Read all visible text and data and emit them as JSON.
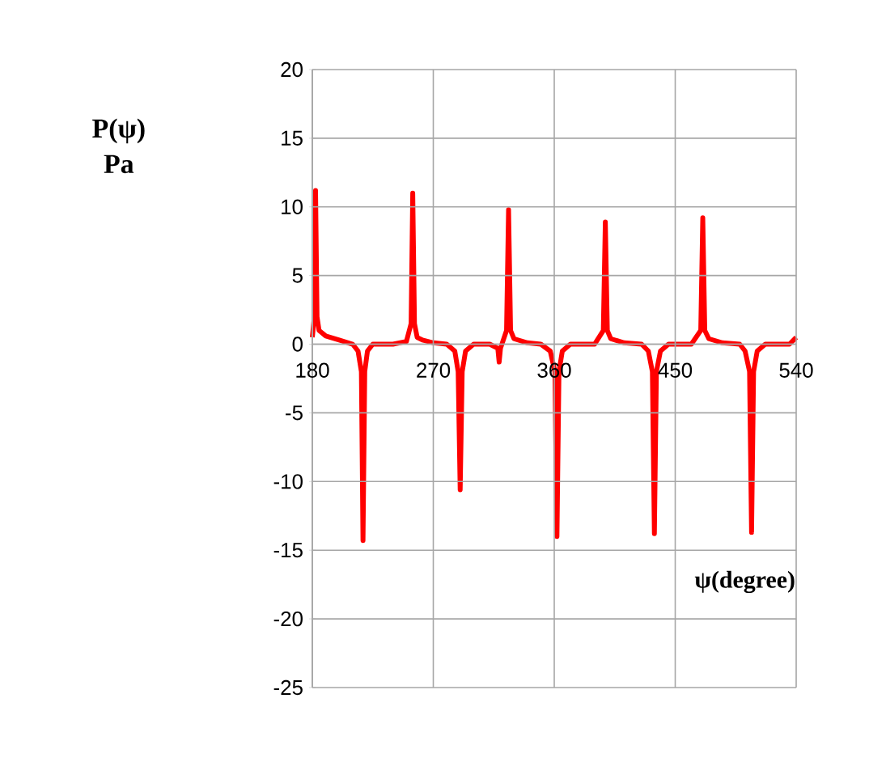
{
  "chart_data": {
    "type": "line",
    "xlabel": "ψ(degree)",
    "ylabel": "P(ψ) Pa",
    "xlim": [
      180,
      540
    ],
    "xticks": [
      180,
      270,
      360,
      450,
      540
    ],
    "ylim": [
      -25,
      20
    ],
    "yticks": [
      -25,
      -20,
      -15,
      -10,
      -5,
      0,
      5,
      10,
      15,
      20
    ],
    "grid": true,
    "marker": "none",
    "line_style": "solid",
    "x": [
      180,
      181.5,
      182.4,
      183.5,
      185,
      190,
      200,
      210,
      214,
      216.5,
      217.7,
      219,
      221,
      225,
      240,
      250,
      253.5,
      254.7,
      256,
      258,
      262,
      270,
      280,
      286,
      288.5,
      290,
      291.5,
      294,
      300,
      312,
      318,
      319,
      320,
      324.5,
      326,
      327.5,
      330,
      340,
      350,
      357,
      360.5,
      362,
      363.5,
      366,
      372,
      390,
      396.5,
      398,
      399.5,
      402,
      412,
      425,
      430,
      433,
      434.5,
      436,
      439,
      445,
      462,
      469,
      470.5,
      472,
      475,
      485,
      498,
      502,
      505.3,
      506.8,
      508.3,
      511,
      517,
      535,
      540
    ],
    "series": [
      {
        "color": "#ff0000",
        "values": [
          0.5,
          2,
          11.2,
          2,
          1,
          0.6,
          0.3,
          0,
          -0.5,
          -2,
          -14.3,
          -2,
          -0.5,
          0,
          0,
          0.2,
          1.5,
          11,
          1.5,
          0.5,
          0.3,
          0.1,
          0,
          -0.5,
          -2,
          -10.6,
          -2,
          -0.5,
          0,
          0,
          -0.3,
          -1.3,
          -0.3,
          1,
          9.8,
          1,
          0.4,
          0.1,
          0,
          -0.5,
          -2,
          -14,
          -2,
          -0.5,
          0,
          0,
          1,
          8.9,
          1,
          0.4,
          0.1,
          0,
          -0.5,
          -2,
          -13.8,
          -2,
          -0.5,
          0,
          0,
          1,
          9.2,
          1,
          0.4,
          0.1,
          0,
          -0.5,
          -2,
          -13.7,
          -2,
          -0.5,
          0,
          0,
          0.5
        ]
      }
    ]
  }
}
